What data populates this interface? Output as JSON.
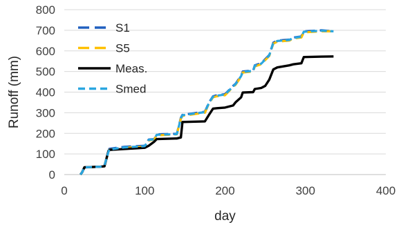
{
  "chart_data": {
    "type": "line",
    "xlabel": "day",
    "ylabel": "Runoff (mm)",
    "xlim": [
      0,
      400
    ],
    "ylim": [
      0,
      800
    ],
    "x_ticks": [
      0,
      100,
      200,
      300,
      400
    ],
    "y_ticks": [
      0,
      100,
      200,
      300,
      400,
      500,
      600,
      700,
      800
    ],
    "grid": "horizontal",
    "legend_position": "top-left",
    "series": [
      {
        "name": "S1",
        "color": "#1f5fbf",
        "dash": "long-dash",
        "x": [
          20,
          22,
          25,
          45,
          50,
          55,
          56,
          75,
          100,
          105,
          112,
          115,
          140,
          145,
          147,
          165,
          175,
          180,
          185,
          190,
          200,
          210,
          213,
          220,
          222,
          235,
          237,
          245,
          250,
          255,
          260,
          265,
          280,
          285,
          295,
          298,
          320,
          335
        ],
        "y": [
          0,
          10,
          35,
          38,
          45,
          110,
          125,
          135,
          140,
          170,
          172,
          195,
          198,
          275,
          290,
          300,
          305,
          350,
          380,
          385,
          390,
          430,
          440,
          480,
          500,
          505,
          530,
          540,
          560,
          580,
          640,
          650,
          655,
          665,
          670,
          695,
          700,
          695
        ]
      },
      {
        "name": "S5",
        "color": "#ffc000",
        "dash": "long-dash",
        "x": [
          20,
          22,
          25,
          45,
          50,
          55,
          56,
          75,
          100,
          105,
          112,
          115,
          140,
          145,
          147,
          165,
          175,
          180,
          185,
          190,
          200,
          210,
          213,
          220,
          222,
          235,
          237,
          245,
          250,
          255,
          260,
          265,
          280,
          285,
          295,
          298,
          320,
          335
        ],
        "y": [
          0,
          10,
          35,
          38,
          45,
          110,
          120,
          130,
          135,
          165,
          170,
          190,
          195,
          270,
          285,
          295,
          300,
          345,
          375,
          380,
          385,
          425,
          435,
          475,
          495,
          500,
          525,
          535,
          555,
          575,
          635,
          645,
          650,
          660,
          665,
          690,
          695,
          695
        ]
      },
      {
        "name": "Meas.",
        "color": "#000000",
        "dash": "solid",
        "x": [
          20,
          22,
          25,
          45,
          50,
          55,
          57,
          100,
          105,
          112,
          115,
          140,
          145,
          147,
          175,
          180,
          185,
          190,
          200,
          210,
          213,
          220,
          222,
          235,
          237,
          245,
          250,
          255,
          260,
          265,
          280,
          285,
          295,
          298,
          320,
          335
        ],
        "y": [
          0,
          10,
          35,
          38,
          40,
          115,
          120,
          130,
          140,
          160,
          172,
          175,
          180,
          255,
          258,
          290,
          320,
          322,
          325,
          335,
          350,
          375,
          398,
          400,
          415,
          420,
          430,
          460,
          510,
          520,
          530,
          535,
          540,
          570,
          572,
          573
        ]
      },
      {
        "name": "Smed",
        "color": "#2aa6e0",
        "dash": "short-dash",
        "x": [
          20,
          22,
          25,
          45,
          50,
          55,
          56,
          75,
          100,
          105,
          112,
          115,
          140,
          145,
          147,
          165,
          175,
          180,
          185,
          190,
          200,
          210,
          213,
          220,
          222,
          235,
          237,
          245,
          250,
          255,
          260,
          265,
          280,
          285,
          295,
          298,
          320,
          335
        ],
        "y": [
          0,
          10,
          35,
          38,
          45,
          110,
          122,
          132,
          138,
          168,
          171,
          193,
          196,
          272,
          288,
          298,
          303,
          348,
          378,
          383,
          388,
          428,
          438,
          478,
          498,
          503,
          528,
          538,
          558,
          578,
          638,
          648,
          653,
          663,
          668,
          693,
          698,
          695
        ]
      }
    ]
  }
}
